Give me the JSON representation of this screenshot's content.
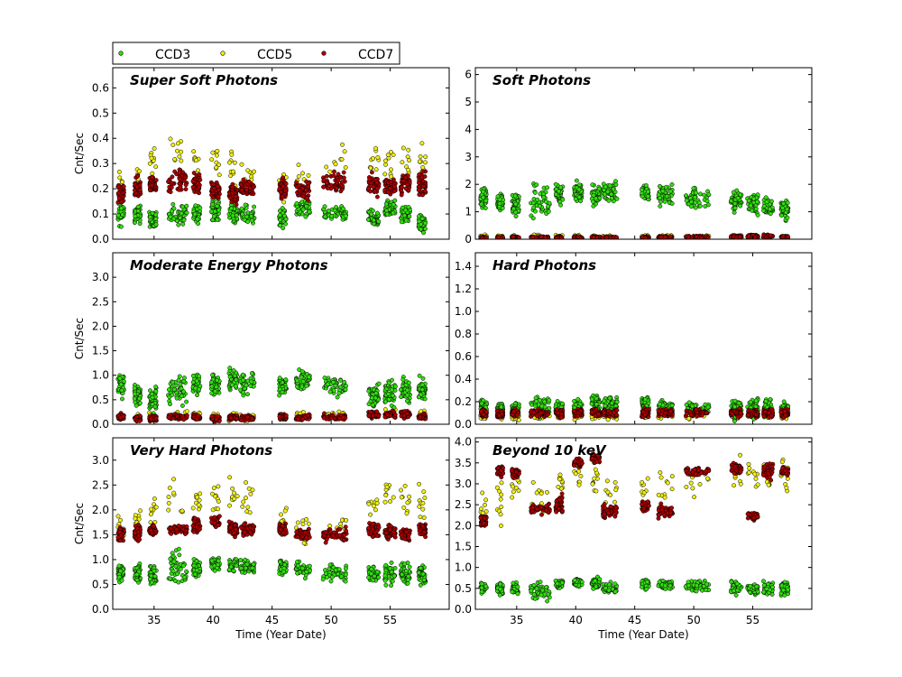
{
  "colors": {
    "CCD3": "#33dd11",
    "CCD5": "#eeee11",
    "CCD7": "#aa0000"
  },
  "chart_data": [
    {
      "type": "scatter",
      "title": "Super Soft Photons",
      "xlabel": "",
      "ylabel": "Cnt/Sec",
      "xlim": [
        31.5,
        60
      ],
      "ylim": [
        0,
        0.68
      ],
      "xticks": [],
      "yticks": [
        "0.0",
        "0.1",
        "0.2",
        "0.3",
        "0.4",
        "0.5",
        "0.6"
      ],
      "series": [
        {
          "name": "CCD3",
          "level": [
            0.1,
            0.1,
            0.08,
            0.1,
            0.1,
            0.12,
            0.1,
            0.1,
            0.08,
            0.12,
            0.1,
            0.08,
            0.12,
            0.1,
            0.06
          ],
          "spread": [
            0.06,
            0.05,
            0.05,
            0.05,
            0.05,
            0.06,
            0.05,
            0.05,
            0.05,
            0.05,
            0.04,
            0.05,
            0.05,
            0.05,
            0.05
          ]
        },
        {
          "name": "CCD5",
          "level": [
            0.2,
            0.25,
            0.3,
            0.35,
            0.3,
            0.3,
            0.28,
            0.25,
            0.2,
            0.25,
            0.3,
            0.32,
            0.3,
            0.3,
            0.3
          ],
          "spread": [
            0.1,
            0.08,
            0.08,
            0.1,
            0.1,
            0.1,
            0.1,
            0.08,
            0.08,
            0.1,
            0.12,
            0.12,
            0.1,
            0.1,
            0.1
          ]
        },
        {
          "name": "CCD7",
          "level": [
            0.18,
            0.2,
            0.22,
            0.23,
            0.22,
            0.2,
            0.18,
            0.2,
            0.2,
            0.2,
            0.22,
            0.22,
            0.21,
            0.22,
            0.22
          ],
          "spread": [
            0.06,
            0.06,
            0.05,
            0.06,
            0.06,
            0.06,
            0.06,
            0.05,
            0.06,
            0.06,
            0.06,
            0.06,
            0.05,
            0.06,
            0.06
          ]
        }
      ]
    },
    {
      "type": "scatter",
      "title": "Soft Photons",
      "xlabel": "",
      "ylabel": "",
      "xlim": [
        31.5,
        60
      ],
      "ylim": [
        0,
        6.25
      ],
      "xticks": [],
      "yticks": [
        "0",
        "1",
        "2",
        "3",
        "4",
        "5",
        "6"
      ],
      "series": [
        {
          "name": "CCD3",
          "level": [
            1.5,
            1.4,
            1.3,
            1.4,
            1.6,
            1.7,
            1.6,
            1.7,
            1.7,
            1.6,
            1.5,
            1.4,
            1.3,
            1.2,
            1.1
          ],
          "spread": [
            0.5,
            0.5,
            0.6,
            0.9,
            0.5,
            0.5,
            0.5,
            0.5,
            0.5,
            0.5,
            0.5,
            0.6,
            0.6,
            0.5,
            0.5
          ]
        },
        {
          "name": "CCD5",
          "level": [
            0.1,
            0.1,
            0.1,
            0.1,
            0.1,
            0.1,
            0.1,
            0.1,
            0.1,
            0.1,
            0.1,
            0.1,
            0.1,
            0.1,
            0.1
          ],
          "spread": [
            0.08,
            0.08,
            0.08,
            0.08,
            0.08,
            0.08,
            0.08,
            0.08,
            0.08,
            0.08,
            0.08,
            0.08,
            0.08,
            0.08,
            0.08
          ]
        },
        {
          "name": "CCD7",
          "level": [
            0.05,
            0.05,
            0.06,
            0.07,
            0.06,
            0.05,
            0.06,
            0.06,
            0.06,
            0.07,
            0.08,
            0.1,
            0.1,
            0.1,
            0.08
          ],
          "spread": [
            0.05,
            0.05,
            0.05,
            0.05,
            0.05,
            0.05,
            0.05,
            0.05,
            0.05,
            0.06,
            0.06,
            0.08,
            0.08,
            0.08,
            0.06
          ]
        }
      ]
    },
    {
      "type": "scatter",
      "title": "Moderate Energy Photons",
      "xlabel": "",
      "ylabel": "Cnt/Sec",
      "xlim": [
        31.5,
        60
      ],
      "ylim": [
        0,
        3.5
      ],
      "xticks": [],
      "yticks": [
        "0.0",
        "0.5",
        "1.0",
        "1.5",
        "2.0",
        "2.5",
        "3.0"
      ],
      "series": [
        {
          "name": "CCD3",
          "level": [
            0.8,
            0.6,
            0.5,
            0.7,
            0.8,
            0.8,
            0.9,
            0.8,
            0.8,
            0.9,
            0.8,
            0.6,
            0.6,
            0.7,
            0.7
          ],
          "spread": [
            0.3,
            0.3,
            0.3,
            0.5,
            0.3,
            0.3,
            0.3,
            0.3,
            0.3,
            0.3,
            0.3,
            0.4,
            0.5,
            0.4,
            0.3
          ]
        },
        {
          "name": "CCD5",
          "level": [
            0.15,
            0.15,
            0.15,
            0.2,
            0.2,
            0.15,
            0.15,
            0.15,
            0.15,
            0.2,
            0.2,
            0.2,
            0.25,
            0.2,
            0.2
          ],
          "spread": [
            0.1,
            0.1,
            0.1,
            0.1,
            0.1,
            0.1,
            0.1,
            0.1,
            0.1,
            0.1,
            0.1,
            0.1,
            0.1,
            0.1,
            0.1
          ]
        },
        {
          "name": "CCD7",
          "level": [
            0.15,
            0.12,
            0.12,
            0.15,
            0.15,
            0.12,
            0.15,
            0.12,
            0.15,
            0.15,
            0.15,
            0.2,
            0.2,
            0.2,
            0.15
          ],
          "spread": [
            0.08,
            0.08,
            0.08,
            0.08,
            0.08,
            0.08,
            0.08,
            0.08,
            0.08,
            0.08,
            0.08,
            0.1,
            0.1,
            0.1,
            0.08
          ]
        }
      ]
    },
    {
      "type": "scatter",
      "title": "Hard Photons",
      "xlabel": "",
      "ylabel": "",
      "xlim": [
        31.5,
        60
      ],
      "ylim": [
        0,
        1.52
      ],
      "xticks": [],
      "yticks": [
        "0.0",
        "0.2",
        "0.4",
        "0.6",
        "0.8",
        "1.0",
        "1.2",
        "1.4"
      ],
      "series": [
        {
          "name": "CCD3",
          "level": [
            0.15,
            0.14,
            0.13,
            0.15,
            0.14,
            0.16,
            0.18,
            0.18,
            0.18,
            0.16,
            0.15,
            0.14,
            0.14,
            0.14,
            0.13
          ],
          "spread": [
            0.08,
            0.08,
            0.08,
            0.15,
            0.08,
            0.08,
            0.1,
            0.1,
            0.1,
            0.08,
            0.08,
            0.12,
            0.12,
            0.1,
            0.08
          ]
        },
        {
          "name": "CCD5",
          "level": [
            0.06,
            0.06,
            0.06,
            0.07,
            0.07,
            0.07,
            0.07,
            0.07,
            0.07,
            0.07,
            0.07,
            0.07,
            0.07,
            0.07,
            0.07
          ],
          "spread": [
            0.04,
            0.04,
            0.04,
            0.04,
            0.04,
            0.04,
            0.04,
            0.04,
            0.04,
            0.04,
            0.04,
            0.04,
            0.04,
            0.04,
            0.04
          ]
        },
        {
          "name": "CCD7",
          "level": [
            0.1,
            0.09,
            0.1,
            0.1,
            0.1,
            0.1,
            0.1,
            0.1,
            0.1,
            0.1,
            0.1,
            0.1,
            0.1,
            0.1,
            0.1
          ],
          "spread": [
            0.05,
            0.05,
            0.05,
            0.05,
            0.05,
            0.05,
            0.05,
            0.05,
            0.05,
            0.05,
            0.05,
            0.05,
            0.05,
            0.05,
            0.05
          ]
        }
      ]
    },
    {
      "type": "scatter",
      "title": "Very Hard Photons",
      "xlabel": "Time (Year Date)",
      "ylabel": "Cnt/Sec",
      "xlim": [
        31.5,
        60
      ],
      "ylim": [
        0,
        3.45
      ],
      "xticks": [
        "35",
        "40",
        "45",
        "50",
        "55"
      ],
      "yticks": [
        "0.0",
        "0.5",
        "1.0",
        "1.5",
        "2.0",
        "2.5",
        "3.0"
      ],
      "series": [
        {
          "name": "CCD3",
          "level": [
            0.75,
            0.7,
            0.7,
            0.8,
            0.85,
            0.9,
            0.9,
            0.85,
            0.85,
            0.8,
            0.75,
            0.7,
            0.7,
            0.7,
            0.7
          ],
          "spread": [
            0.25,
            0.3,
            0.3,
            0.5,
            0.25,
            0.2,
            0.2,
            0.2,
            0.2,
            0.2,
            0.25,
            0.3,
            0.3,
            0.3,
            0.3
          ]
        },
        {
          "name": "CCD5",
          "level": [
            1.6,
            1.8,
            2.0,
            2.2,
            2.2,
            2.3,
            2.4,
            2.2,
            1.8,
            1.6,
            1.6,
            2.0,
            2.2,
            2.2,
            2.2
          ],
          "spread": [
            0.4,
            0.5,
            0.5,
            0.6,
            0.5,
            0.5,
            0.5,
            0.5,
            0.4,
            0.4,
            0.4,
            0.5,
            0.5,
            0.5,
            0.5
          ]
        },
        {
          "name": "CCD7",
          "level": [
            1.5,
            1.55,
            1.6,
            1.6,
            1.7,
            1.75,
            1.6,
            1.6,
            1.6,
            1.5,
            1.5,
            1.6,
            1.55,
            1.5,
            1.6
          ],
          "spread": [
            0.2,
            0.2,
            0.15,
            0.15,
            0.2,
            0.2,
            0.2,
            0.15,
            0.15,
            0.2,
            0.2,
            0.2,
            0.2,
            0.2,
            0.2
          ]
        }
      ]
    },
    {
      "type": "scatter",
      "title": "Beyond 10 keV",
      "xlabel": "Time (Year Date)",
      "ylabel": "",
      "xlim": [
        31.5,
        60
      ],
      "ylim": [
        0,
        4.1
      ],
      "xticks": [
        "35",
        "40",
        "45",
        "50",
        "55"
      ],
      "yticks": [
        "0.0",
        "0.5",
        "1.0",
        "1.5",
        "2.0",
        "2.5",
        "3.0",
        "3.5",
        "4.0"
      ],
      "series": [
        {
          "name": "CCD3",
          "level": [
            0.5,
            0.5,
            0.5,
            0.4,
            0.6,
            0.65,
            0.6,
            0.5,
            0.6,
            0.6,
            0.55,
            0.5,
            0.5,
            0.5,
            0.5
          ],
          "spread": [
            0.2,
            0.2,
            0.2,
            0.3,
            0.15,
            0.15,
            0.2,
            0.2,
            0.15,
            0.15,
            0.2,
            0.2,
            0.2,
            0.2,
            0.2
          ]
        },
        {
          "name": "CCD5",
          "level": [
            2.4,
            2.6,
            3.0,
            2.8,
            3.0,
            3.2,
            3.0,
            2.8,
            2.8,
            3.0,
            3.0,
            3.2,
            3.3,
            3.2,
            3.2
          ],
          "spread": [
            0.6,
            0.7,
            0.8,
            0.6,
            0.6,
            0.6,
            0.6,
            0.6,
            0.6,
            0.6,
            0.6,
            0.6,
            0.6,
            0.6,
            0.6
          ]
        },
        {
          "name": "CCD7",
          "level": [
            2.1,
            3.3,
            3.25,
            2.4,
            2.5,
            3.5,
            3.6,
            2.35,
            2.45,
            2.35,
            3.3,
            3.35,
            2.25,
            3.3,
            3.3
          ],
          "spread": [
            0.2,
            0.15,
            0.15,
            0.15,
            0.3,
            0.15,
            0.15,
            0.25,
            0.15,
            0.25,
            0.15,
            0.2,
            0.15,
            0.3,
            0.15
          ]
        }
      ]
    }
  ],
  "legend": {
    "items": [
      "CCD3",
      "CCD5",
      "CCD7"
    ]
  }
}
